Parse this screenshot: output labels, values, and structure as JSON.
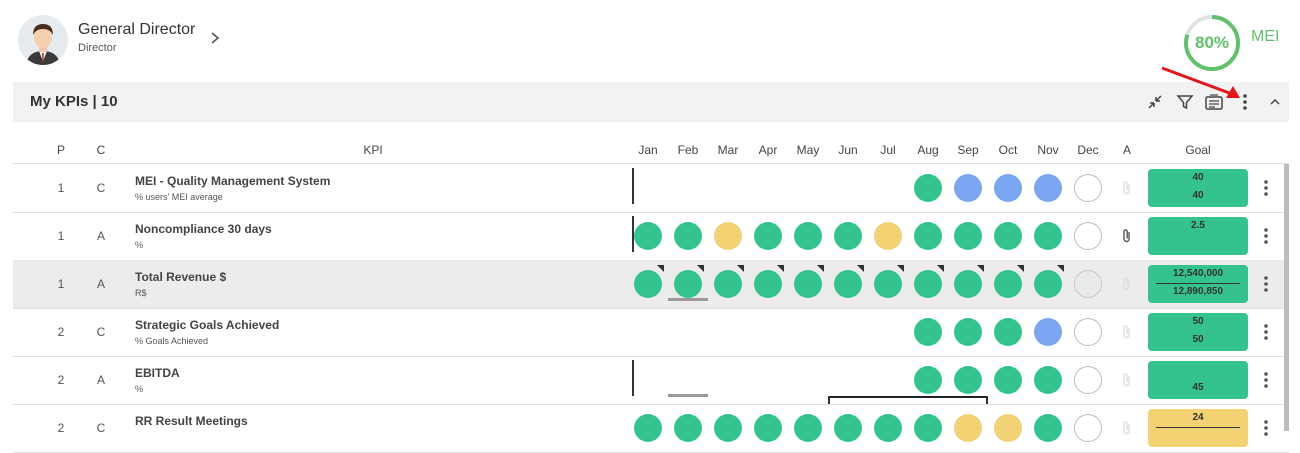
{
  "user": {
    "name": "General Director",
    "role": "Director"
  },
  "mei": {
    "percent_text": "80%",
    "percent": 80,
    "label": "MEI"
  },
  "kpi_bar": {
    "title": "My KPIs | 10"
  },
  "columns": {
    "p": "P",
    "c": "C",
    "kpi": "KPI",
    "months": [
      "Jan",
      "Feb",
      "Mar",
      "Apr",
      "May",
      "Jun",
      "Jul",
      "Aug",
      "Sep",
      "Oct",
      "Nov",
      "Dec"
    ],
    "a": "A",
    "goal": "Goal"
  },
  "rows": [
    {
      "p": "1",
      "c": "C",
      "name": "MEI - Quality Management System",
      "sub": "% users' MEI average",
      "dots": [
        "",
        "",
        "",
        "",
        "",
        "",
        "",
        "g",
        "b",
        "b",
        "b",
        "w"
      ],
      "goal1": "40",
      "goal2": "40",
      "goal_color": "green",
      "attach": "faded"
    },
    {
      "p": "1",
      "c": "A",
      "name": "Noncompliance 30 days",
      "sub": "%",
      "dots": [
        "g",
        "g",
        "y",
        "g",
        "g",
        "g",
        "y",
        "g",
        "g",
        "g",
        "g",
        "w"
      ],
      "goal1": "2.5",
      "goal2": "",
      "goal_color": "green",
      "attach": "dark"
    },
    {
      "p": "1",
      "c": "A",
      "name": "Total Revenue $",
      "sub": "R$",
      "dots": [
        "g",
        "g",
        "g",
        "g",
        "g",
        "g",
        "g",
        "g",
        "g",
        "g",
        "g",
        "gr"
      ],
      "goal1": "12,540,000",
      "goal2": "12,890,850",
      "goal_color": "green",
      "attach": "faded"
    },
    {
      "p": "2",
      "c": "C",
      "name": "Strategic Goals Achieved",
      "sub": "% Goals Achieved",
      "dots": [
        "",
        "",
        "",
        "",
        "",
        "",
        "",
        "g",
        "g",
        "g",
        "b",
        "w"
      ],
      "goal1": "50",
      "goal2": "50",
      "goal_color": "green",
      "attach": "faded"
    },
    {
      "p": "2",
      "c": "A",
      "name": "EBITDA",
      "sub": "%",
      "dots": [
        "",
        "",
        "",
        "",
        "",
        "",
        "",
        "g",
        "g",
        "g",
        "g",
        "w"
      ],
      "goal1": "",
      "goal2": "45",
      "goal_color": "green",
      "attach": "faded"
    },
    {
      "p": "2",
      "c": "C",
      "name": "RR Result Meetings",
      "sub": "",
      "dots": [
        "g",
        "g",
        "g",
        "g",
        "g",
        "g",
        "g",
        "g",
        "y",
        "y",
        "g",
        "w"
      ],
      "goal1": "24",
      "goal2": "",
      "goal_color": "yellow",
      "attach": "faded"
    }
  ],
  "colors": {
    "green": "#34c28f",
    "blue": "#7ba7f2",
    "yellow": "#f3d273",
    "mei": "#5fc26b",
    "annotation": "#e8141a"
  },
  "icons": [
    "collapse-icon",
    "filter-icon",
    "card-view-icon",
    "more-vert-icon",
    "chevron-up-icon",
    "paperclip-icon"
  ]
}
